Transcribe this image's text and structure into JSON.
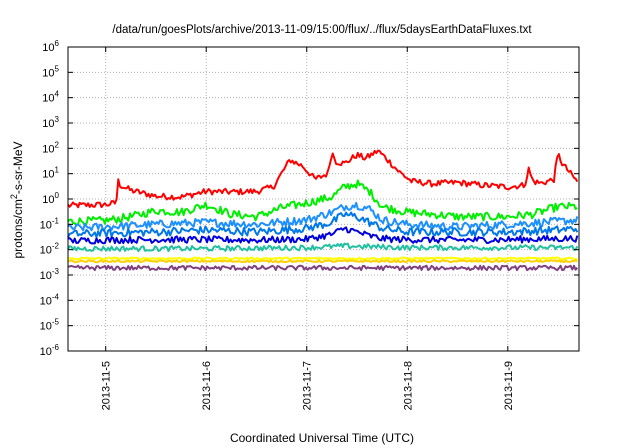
{
  "chart_data": {
    "type": "line",
    "title": "/data/run/goesPlots/archive/2013-11-09/15:00/flux/../flux/5daysEarthDataFluxes.txt",
    "xlabel": "Coordinated Universal Time (UTC)",
    "ylabel": "protons/cm²-s-sr-MeV",
    "ylabel_parts": {
      "prefix": "protons/cm",
      "sup": "2",
      "suffix": "-s-sr-MeV"
    },
    "y_scale": "log",
    "ylim": [
      1e-06,
      1000000.0
    ],
    "y_ticks": [
      {
        "value": 1e-06,
        "exp": "-6"
      },
      {
        "value": 1e-05,
        "exp": "-5"
      },
      {
        "value": 0.0001,
        "exp": "-4"
      },
      {
        "value": 0.001,
        "exp": "-3"
      },
      {
        "value": 0.01,
        "exp": "-2"
      },
      {
        "value": 0.1,
        "exp": "-1"
      },
      {
        "value": 1,
        "exp": "0"
      },
      {
        "value": 10,
        "exp": "1"
      },
      {
        "value": 100,
        "exp": "2"
      },
      {
        "value": 1000,
        "exp": "3"
      },
      {
        "value": 10000,
        "exp": "4"
      },
      {
        "value": 100000,
        "exp": "5"
      },
      {
        "value": 1000000,
        "exp": "6"
      }
    ],
    "xlim": [
      "2013-11-04 15:00",
      "2013-11-09 17:00"
    ],
    "x_ticks": [
      "2013-11-5",
      "2013-11-6",
      "2013-11-7",
      "2013-11-8",
      "2013-11-9"
    ],
    "grid": true,
    "legend": "none",
    "series": [
      {
        "color": "#ff0000",
        "x": [
          "2013-11-04 15:00",
          "2013-11-05 00:00",
          "2013-11-05 02:30",
          "2013-11-05 03:00",
          "2013-11-05 03:30",
          "2013-11-05 06:00",
          "2013-11-05 12:00",
          "2013-11-05 18:00",
          "2013-11-06 00:00",
          "2013-11-06 06:00",
          "2013-11-06 12:00",
          "2013-11-06 16:00",
          "2013-11-06 20:00",
          "2013-11-06 23:00",
          "2013-11-07 02:00",
          "2013-11-07 05:00",
          "2013-11-07 06:00",
          "2013-11-07 07:00",
          "2013-11-07 09:00",
          "2013-11-07 12:00",
          "2013-11-07 14:00",
          "2013-11-07 17:00",
          "2013-11-07 19:00",
          "2013-11-07 22:00",
          "2013-11-08 01:00",
          "2013-11-08 06:00",
          "2013-11-08 12:00",
          "2013-11-08 18:00",
          "2013-11-09 00:00",
          "2013-11-09 04:00",
          "2013-11-09 05:00",
          "2013-11-09 06:00",
          "2013-11-09 08:00",
          "2013-11-09 11:00",
          "2013-11-09 12:00",
          "2013-11-09 13:00",
          "2013-11-09 17:00"
        ],
        "values": [
          0.55,
          0.6,
          0.7,
          5.0,
          3.5,
          2.2,
          1.3,
          1.2,
          2.0,
          1.9,
          2.0,
          3.0,
          35,
          20,
          6.0,
          10,
          70,
          30,
          25,
          55,
          40,
          80,
          40,
          12,
          5.0,
          4.0,
          4.5,
          3.5,
          3.0,
          3.5,
          15,
          5,
          4.2,
          6.0,
          60,
          25,
          4.0
        ]
      },
      {
        "color": "#00ee00",
        "x": [
          "2013-11-04 15:00",
          "2013-11-05 00:00",
          "2013-11-05 06:00",
          "2013-11-05 12:00",
          "2013-11-05 18:00",
          "2013-11-06 00:00",
          "2013-11-06 06:00",
          "2013-11-06 12:00",
          "2013-11-06 18:00",
          "2013-11-07 00:00",
          "2013-11-07 06:00",
          "2013-11-07 09:00",
          "2013-11-07 12:00",
          "2013-11-07 15:00",
          "2013-11-07 18:00",
          "2013-11-08 00:00",
          "2013-11-08 06:00",
          "2013-11-08 12:00",
          "2013-11-08 18:00",
          "2013-11-09 00:00",
          "2013-11-09 06:00",
          "2013-11-09 12:00",
          "2013-11-09 17:00"
        ],
        "values": [
          0.13,
          0.14,
          0.2,
          0.35,
          0.3,
          0.6,
          0.25,
          0.2,
          0.45,
          0.7,
          1.2,
          3.0,
          4.0,
          2.0,
          0.5,
          0.3,
          0.25,
          0.2,
          0.2,
          0.2,
          0.25,
          0.5,
          0.5
        ]
      },
      {
        "color": "#1e90ff",
        "x": [
          "2013-11-04 15:00",
          "2013-11-05 00:00",
          "2013-11-05 12:00",
          "2013-11-06 00:00",
          "2013-11-06 12:00",
          "2013-11-07 00:00",
          "2013-11-07 06:00",
          "2013-11-07 09:00",
          "2013-11-07 12:00",
          "2013-11-07 15:00",
          "2013-11-07 18:00",
          "2013-11-08 00:00",
          "2013-11-08 12:00",
          "2013-11-09 00:00",
          "2013-11-09 12:00",
          "2013-11-09 17:00"
        ],
        "values": [
          0.07,
          0.08,
          0.1,
          0.12,
          0.1,
          0.15,
          0.3,
          0.5,
          0.6,
          0.4,
          0.15,
          0.1,
          0.08,
          0.1,
          0.13,
          0.15
        ]
      },
      {
        "color": "#0078e8",
        "x": [
          "2013-11-04 15:00",
          "2013-11-05 00:00",
          "2013-11-05 12:00",
          "2013-11-06 00:00",
          "2013-11-06 12:00",
          "2013-11-07 00:00",
          "2013-11-07 06:00",
          "2013-11-07 09:00",
          "2013-11-07 12:00",
          "2013-11-07 15:00",
          "2013-11-07 18:00",
          "2013-11-08 00:00",
          "2013-11-08 12:00",
          "2013-11-09 00:00",
          "2013-11-09 12:00",
          "2013-11-09 17:00"
        ],
        "values": [
          0.04,
          0.045,
          0.05,
          0.06,
          0.05,
          0.07,
          0.12,
          0.25,
          0.2,
          0.12,
          0.07,
          0.05,
          0.05,
          0.05,
          0.06,
          0.07
        ]
      },
      {
        "color": "#0000dd",
        "x": [
          "2013-11-04 15:00",
          "2013-11-05 00:00",
          "2013-11-05 12:00",
          "2013-11-06 00:00",
          "2013-11-06 12:00",
          "2013-11-07 00:00",
          "2013-11-07 06:00",
          "2013-11-07 09:00",
          "2013-11-07 12:00",
          "2013-11-07 15:00",
          "2013-11-07 18:00",
          "2013-11-08 00:00",
          "2013-11-08 12:00",
          "2013-11-09 00:00",
          "2013-11-09 12:00",
          "2013-11-09 17:00"
        ],
        "values": [
          0.022,
          0.024,
          0.025,
          0.025,
          0.024,
          0.026,
          0.04,
          0.07,
          0.05,
          0.035,
          0.027,
          0.025,
          0.024,
          0.025,
          0.027,
          0.028
        ]
      },
      {
        "color": "#20c0a0",
        "x": [
          "2013-11-04 15:00",
          "2013-11-06 00:00",
          "2013-11-07 00:00",
          "2013-11-07 09:00",
          "2013-11-08 00:00",
          "2013-11-09 17:00"
        ],
        "values": [
          0.011,
          0.011,
          0.012,
          0.014,
          0.012,
          0.012
        ]
      },
      {
        "color": "#ffff00",
        "x": [
          "2013-11-04 15:00",
          "2013-11-09 17:00"
        ],
        "values": [
          0.0045,
          0.0045
        ]
      },
      {
        "color": "#ffd000",
        "x": [
          "2013-11-04 15:00",
          "2013-11-09 17:00"
        ],
        "values": [
          0.0035,
          0.0035
        ]
      },
      {
        "color": "#804080",
        "x": [
          "2013-11-04 15:00",
          "2013-11-09 17:00"
        ],
        "values": [
          0.0019,
          0.0019
        ]
      }
    ]
  }
}
